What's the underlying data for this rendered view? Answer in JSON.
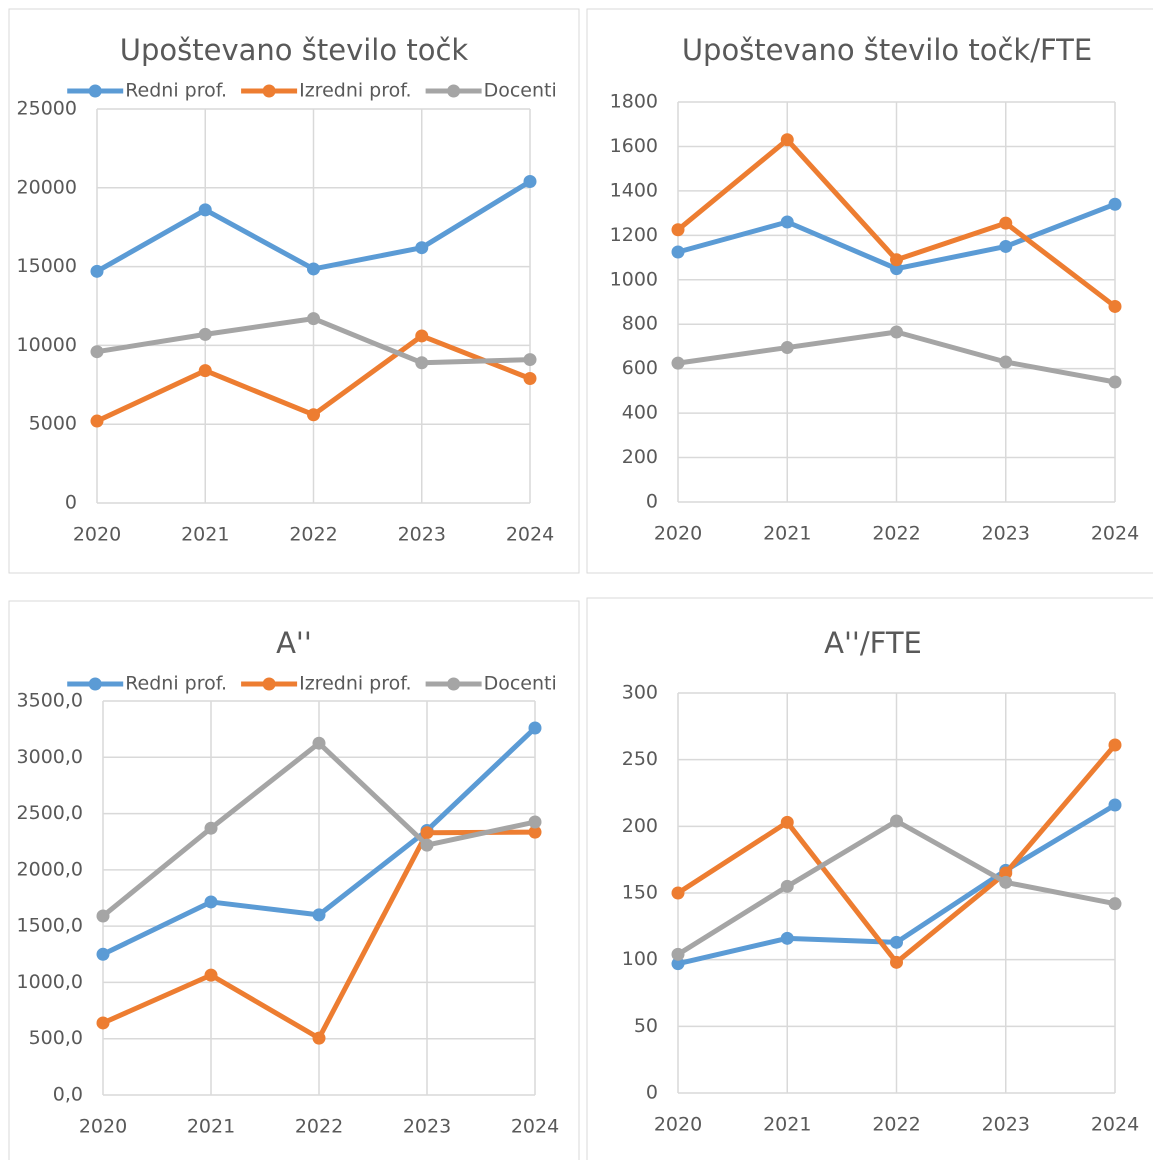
{
  "chart_data": [
    {
      "type": "line",
      "title": "Upoštevano število točk",
      "legend": "top",
      "grid": true,
      "categories": [
        "2020",
        "2021",
        "2022",
        "2023",
        "2024"
      ],
      "ylim": [
        0,
        25000
      ],
      "yticks": [
        0,
        5000,
        10000,
        15000,
        20000,
        25000
      ],
      "series": [
        {
          "name": "Redni prof.",
          "color": "#5b9bd5",
          "values": [
            14700,
            18600,
            14850,
            16200,
            20400
          ]
        },
        {
          "name": "Izredni prof.",
          "color": "#ed7d31",
          "values": [
            5200,
            8400,
            5600,
            10600,
            7900
          ]
        },
        {
          "name": "Docenti",
          "color": "#a5a5a5",
          "values": [
            9600,
            10700,
            11700,
            8900,
            9100
          ]
        }
      ]
    },
    {
      "type": "line",
      "title": "Upoštevano število točk/FTE",
      "grid": true,
      "categories": [
        "2020",
        "2021",
        "2022",
        "2023",
        "2024"
      ],
      "ylim": [
        0,
        1800
      ],
      "yticks": [
        0,
        200,
        400,
        600,
        800,
        1000,
        1200,
        1400,
        1600,
        1800
      ],
      "series": [
        {
          "color": "#5b9bd5",
          "values": [
            1125,
            1260,
            1050,
            1150,
            1340
          ]
        },
        {
          "color": "#ed7d31",
          "values": [
            1225,
            1630,
            1090,
            1255,
            880
          ]
        },
        {
          "color": "#a5a5a5",
          "values": [
            625,
            695,
            765,
            630,
            540
          ]
        }
      ]
    },
    {
      "type": "line",
      "title": "A''",
      "legend": "top",
      "grid": true,
      "categories": [
        "2020",
        "2021",
        "2022",
        "2023",
        "2024"
      ],
      "ylim": [
        0,
        3500
      ],
      "yticks": [
        {
          "value": 0,
          "label": "0,0"
        },
        {
          "value": 500,
          "label": "500,0"
        },
        {
          "value": 1000,
          "label": "1000,0"
        },
        {
          "value": 1500,
          "label": "1500,0"
        },
        {
          "value": 2000,
          "label": "2000,0"
        },
        {
          "value": 2500,
          "label": "2500,0"
        },
        {
          "value": 3000,
          "label": "3000,0"
        },
        {
          "value": 3500,
          "label": "3500,0"
        }
      ],
      "series": [
        {
          "name": "Redni prof.",
          "color": "#5b9bd5",
          "values": [
            1250,
            1715,
            1600,
            2350,
            3260
          ]
        },
        {
          "name": "Izredni prof.",
          "color": "#ed7d31",
          "values": [
            640,
            1065,
            505,
            2330,
            2335
          ]
        },
        {
          "name": "Docenti",
          "color": "#a5a5a5",
          "values": [
            1590,
            2370,
            3125,
            2220,
            2425
          ]
        }
      ]
    },
    {
      "type": "line",
      "title": "A''/FTE",
      "grid": true,
      "categories": [
        "2020",
        "2021",
        "2022",
        "2023",
        "2024"
      ],
      "ylim": [
        0,
        300
      ],
      "yticks": [
        0,
        50,
        100,
        150,
        200,
        250,
        300
      ],
      "series": [
        {
          "color": "#5b9bd5",
          "values": [
            97,
            116,
            113,
            167,
            216
          ]
        },
        {
          "color": "#ed7d31",
          "values": [
            150,
            203,
            98,
            165,
            261
          ]
        },
        {
          "color": "#a5a5a5",
          "values": [
            104,
            155,
            204,
            158,
            142
          ]
        }
      ]
    }
  ]
}
